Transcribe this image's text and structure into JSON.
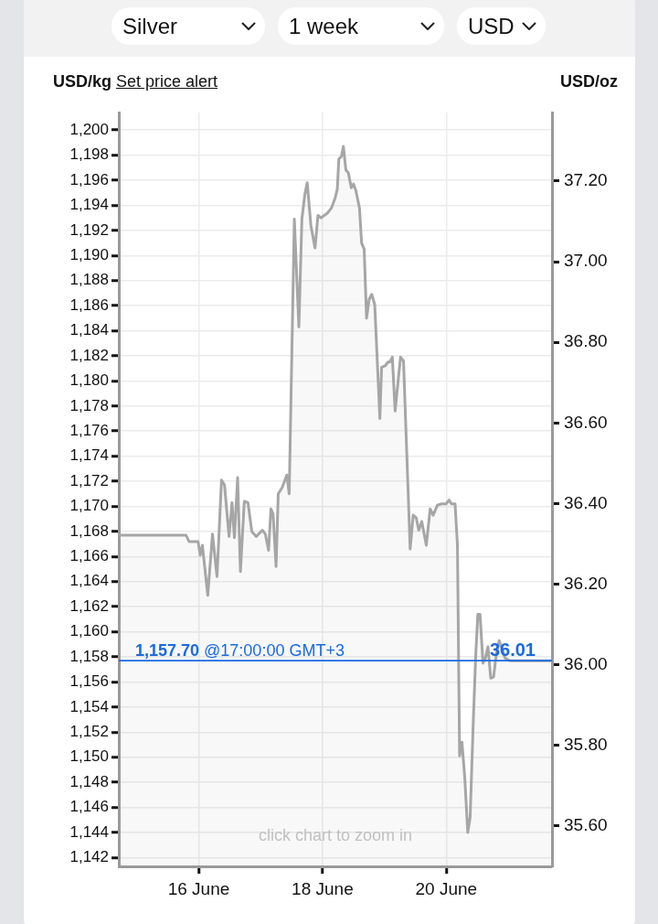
{
  "chart_data": {
    "type": "area",
    "color": "#a6a6a6",
    "marker": "none",
    "grid": true,
    "ylabel": "USD/kg",
    "y2label": "USD/oz",
    "x": [
      "--06-14T17:00",
      "--06-15T19:05",
      "--06-15T20:15",
      "--06-15T23:45",
      "--06-16T00:35",
      "--06-16T01:25",
      "--06-16T03:30",
      "--06-16T05:20",
      "--06-16T07:05",
      "--06-16T08:50",
      "--06-16T10:00",
      "--06-16T11:45",
      "--06-16T12:55",
      "--06-16T13:50",
      "--06-16T15:05",
      "--06-16T16:10",
      "--06-16T17:40",
      "--06-16T19:05",
      "--06-16T20:35",
      "--06-16T22:20",
      "--06-17T00:40",
      "--06-17T01:50",
      "--06-17T03:05",
      "--06-17T04:00",
      "--06-17T04:50",
      "--06-17T06:00",
      "--06-17T06:50",
      "--06-17T08:20",
      "--06-17T10:10",
      "--06-17T11:05",
      "--06-17T13:05",
      "--06-17T14:50",
      "--06-17T16:00",
      "--06-17T17:10",
      "--06-17T18:05",
      "--06-17T19:30",
      "--06-17T21:05",
      "--06-17T22:15",
      "--06-17T23:25",
      "--06-18T02:00",
      "--06-18T03:30",
      "--06-18T04:55",
      "--06-18T05:45",
      "--06-18T06:20",
      "--06-18T07:20",
      "--06-18T08:05",
      "--06-18T09:05",
      "--06-18T10:00",
      "--06-18T11:10",
      "--06-18T12:00",
      "--06-18T12:55",
      "--06-18T14:20",
      "--06-18T15:10",
      "--06-18T16:10",
      "--06-18T17:05",
      "--06-18T18:05",
      "--06-18T19:05",
      "--06-18T20:15",
      "--06-18T22:15",
      "--06-18T22:55",
      "--06-19T00:20",
      "--06-19T01:20",
      "--06-19T02:05",
      "--06-19T03:05",
      "--06-19T04:10",
      "--06-19T06:15",
      "--06-19T07:25",
      "--06-19T10:00",
      "--06-19T11:10",
      "--06-19T12:20",
      "--06-19T13:20",
      "--06-19T14:30",
      "--06-19T16:15",
      "--06-19T17:45",
      "--06-19T18:55",
      "--06-19T20:35",
      "--06-19T22:10",
      "--06-19T23:55",
      "--06-20T01:05",
      "--06-20T02:00",
      "--06-20T03:25",
      "--06-20T04:20",
      "--06-20T05:10",
      "--06-20T06:05",
      "--06-20T07:10",
      "--06-20T08:20",
      "--06-20T09:15",
      "--06-20T10:30",
      "--06-20T11:25",
      "--06-20T12:15",
      "--06-20T13:05",
      "--06-20T14:15",
      "--06-20T15:10",
      "--06-20T16:10",
      "--06-20T17:15",
      "--06-20T18:20",
      "--06-20T19:20",
      "--06-20T20:30",
      "--06-20T21:40",
      "--06-20T22:50",
      "--06-21T00:35",
      "--06-21T17:00"
    ],
    "values": [
      1167.7,
      1167.7,
      1167.2,
      1167.2,
      1166.1,
      1166.9,
      1162.9,
      1167.8,
      1164.4,
      1172.1,
      1171.7,
      1167.6,
      1170.3,
      1167.5,
      1172.3,
      1164.8,
      1170.4,
      1170.3,
      1168.0,
      1167.6,
      1168.1,
      1167.8,
      1166.5,
      1169.8,
      1169.4,
      1165.2,
      1171.0,
      1171.5,
      1172.5,
      1171.0,
      1192.9,
      1184.3,
      1192.9,
      1194.9,
      1195.8,
      1192.4,
      1190.6,
      1193.2,
      1193.0,
      1193.4,
      1193.8,
      1194.6,
      1195.3,
      1197.7,
      1197.9,
      1198.7,
      1196.8,
      1196.6,
      1195.4,
      1195.7,
      1195.2,
      1193.8,
      1191.0,
      1190.5,
      1185.0,
      1186.5,
      1186.9,
      1186.1,
      1177.0,
      1181.1,
      1181.2,
      1181.5,
      1181.5,
      1181.9,
      1177.6,
      1181.9,
      1181.6,
      1166.6,
      1169.3,
      1169.1,
      1168.1,
      1168.8,
      1166.9,
      1169.8,
      1169.3,
      1170.1,
      1170.2,
      1170.2,
      1170.5,
      1170.2,
      1170.2,
      1166.9,
      1150.1,
      1151.2,
      1148.4,
      1144.0,
      1145.2,
      1153.0,
      1158.1,
      1161.4,
      1161.4,
      1157.5,
      1157.9,
      1158.8,
      1156.3,
      1156.4,
      1158.1,
      1159.3,
      1158.6,
      1157.9,
      1157.7,
      1157.7
    ],
    "xlim": [
      "--06-14T17:00",
      "--06-21T17:00"
    ],
    "xticks": [
      {
        "value": "--06-16",
        "label": "16 June"
      },
      {
        "value": "--06-18",
        "label": "18 June"
      },
      {
        "value": "--06-20",
        "label": "20 June"
      }
    ],
    "ylim": [
      1141.3,
      1201.4
    ],
    "yticks": [
      {
        "value": 1142,
        "label": "1,142"
      },
      {
        "value": 1144,
        "label": "1,144"
      },
      {
        "value": 1146,
        "label": "1,146"
      },
      {
        "value": 1148,
        "label": "1,148"
      },
      {
        "value": 1150,
        "label": "1,150"
      },
      {
        "value": 1152,
        "label": "1,152"
      },
      {
        "value": 1154,
        "label": "1,154"
      },
      {
        "value": 1156,
        "label": "1,156"
      },
      {
        "value": 1158,
        "label": "1,158"
      },
      {
        "value": 1160,
        "label": "1,160"
      },
      {
        "value": 1162,
        "label": "1,162"
      },
      {
        "value": 1164,
        "label": "1,164"
      },
      {
        "value": 1166,
        "label": "1,166"
      },
      {
        "value": 1168,
        "label": "1,168"
      },
      {
        "value": 1170,
        "label": "1,170"
      },
      {
        "value": 1172,
        "label": "1,172"
      },
      {
        "value": 1174,
        "label": "1,174"
      },
      {
        "value": 1176,
        "label": "1,176"
      },
      {
        "value": 1178,
        "label": "1,178"
      },
      {
        "value": 1180,
        "label": "1,180"
      },
      {
        "value": 1182,
        "label": "1,182"
      },
      {
        "value": 1184,
        "label": "1,184"
      },
      {
        "value": 1186,
        "label": "1,186"
      },
      {
        "value": 1188,
        "label": "1,188"
      },
      {
        "value": 1190,
        "label": "1,190"
      },
      {
        "value": 1192,
        "label": "1,192"
      },
      {
        "value": 1194,
        "label": "1,194"
      },
      {
        "value": 1196,
        "label": "1,196"
      },
      {
        "value": 1198,
        "label": "1,198"
      },
      {
        "value": 1200,
        "label": "1,200"
      }
    ],
    "y2lim": [
      35.5,
      37.37
    ],
    "y2ticks": [
      {
        "value": 35.6,
        "label": "35.60"
      },
      {
        "value": 35.8,
        "label": "35.80"
      },
      {
        "value": 36.0,
        "label": "36.00"
      },
      {
        "value": 36.2,
        "label": "36.20"
      },
      {
        "value": 36.4,
        "label": "36.40"
      },
      {
        "value": 36.6,
        "label": "36.60"
      },
      {
        "value": 36.8,
        "label": "36.80"
      },
      {
        "value": 37.0,
        "label": "37.00"
      },
      {
        "value": 37.2,
        "label": "37.20"
      }
    ],
    "ref_lines": [
      {
        "axis": "y",
        "value": 1157.7,
        "label": "1,157.70 @17:00:00 GMT+3",
        "color": "#1a6ae0"
      }
    ],
    "annotations": [
      "Silver",
      "1 week",
      "USD",
      "Set price alert",
      "click chart to zoom in",
      {
        "text": "36.01",
        "x": "--06-21T17:00",
        "y": 1157.7
      }
    ]
  }
}
